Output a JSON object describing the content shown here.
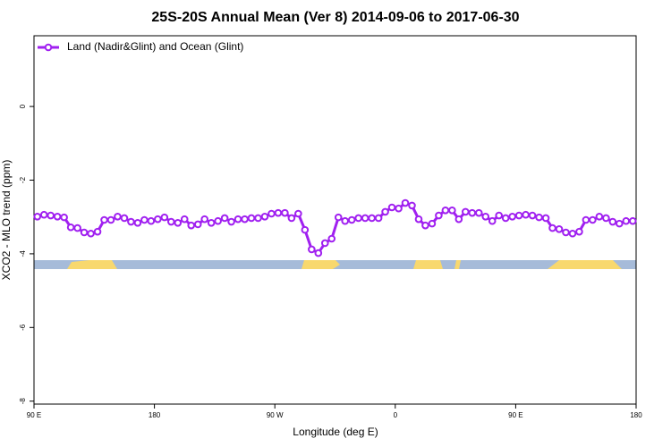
{
  "chart_data": {
    "type": "line",
    "title": "25S-20S Annual Mean (Ver 8)   2014-09-06 to 2017-06-30",
    "x_label": "Longitude (deg E)",
    "y_label": "XCO2 - MLO trend (ppm)",
    "xlim": [
      90,
      540
    ],
    "ylim": [
      -8.08,
      1.92
    ],
    "xticks": [
      {
        "value": 90,
        "label": "90 E"
      },
      180,
      {
        "value": 270,
        "label": "90 W"
      },
      {
        "value": 360,
        "label": "0"
      },
      {
        "value": 450,
        "label": "90 E"
      },
      {
        "value": 540,
        "label": "180"
      }
    ],
    "yticks": [
      0,
      -2,
      -4,
      -6,
      -8
    ],
    "legend": "top-left",
    "x": [
      92.5,
      97.5,
      102.5,
      107.5,
      112.5,
      117.5,
      122.5,
      127.5,
      132.5,
      137.5,
      142.5,
      147.5,
      152.5,
      157.5,
      162.5,
      167.5,
      172.5,
      177.5,
      182.5,
      187.5,
      192.5,
      197.5,
      202.5,
      207.5,
      212.5,
      217.5,
      222.5,
      227.5,
      232.5,
      237.5,
      242.5,
      247.5,
      252.5,
      257.5,
      262.5,
      267.5,
      272.5,
      277.5,
      282.5,
      287.5,
      292.5,
      297.5,
      302.5,
      307.5,
      312.5,
      317.5,
      322.5,
      327.5,
      332.5,
      337.5,
      342.5,
      347.5,
      352.5,
      357.5,
      362.5,
      367.5,
      372.5,
      377.5,
      382.5,
      387.5,
      392.5,
      397.5,
      402.5,
      407.5,
      412.5,
      417.5,
      422.5,
      427.5,
      432.5,
      437.5,
      442.5,
      447.5,
      452.5,
      457.5,
      462.5,
      467.5,
      472.5,
      477.5,
      482.5,
      487.5,
      492.5,
      497.5,
      502.5,
      507.5,
      512.5,
      517.5,
      522.5,
      527.5,
      532.5,
      537.5
    ],
    "series": [
      {
        "name": "Land (Nadir&Glint) and Ocean (Glint)",
        "color": "#a020f0",
        "values": [
          -2.99,
          -2.94,
          -2.96,
          -2.99,
          -3.01,
          -3.28,
          -3.3,
          -3.42,
          -3.45,
          -3.4,
          -3.08,
          -3.08,
          -2.99,
          -3.03,
          -3.13,
          -3.16,
          -3.08,
          -3.11,
          -3.06,
          -3.01,
          -3.13,
          -3.16,
          -3.06,
          -3.23,
          -3.2,
          -3.06,
          -3.16,
          -3.11,
          -3.03,
          -3.13,
          -3.06,
          -3.06,
          -3.03,
          -3.03,
          -2.99,
          -2.91,
          -2.89,
          -2.89,
          -3.03,
          -2.91,
          -3.35,
          -3.88,
          -3.98,
          -3.71,
          -3.59,
          -3.01,
          -3.11,
          -3.08,
          -3.03,
          -3.03,
          -3.03,
          -3.03,
          -2.86,
          -2.74,
          -2.77,
          -2.62,
          -2.69,
          -3.06,
          -3.23,
          -3.18,
          -2.96,
          -2.82,
          -2.82,
          -3.06,
          -2.86,
          -2.89,
          -2.89,
          -2.99,
          -3.11,
          -2.96,
          -3.03,
          -2.99,
          -2.96,
          -2.94,
          -2.96,
          -3.01,
          -3.03,
          -3.3,
          -3.33,
          -3.42,
          -3.45,
          -3.4,
          -3.08,
          -3.08,
          -2.99,
          -3.03,
          -3.13,
          -3.18,
          -3.11,
          -3.11
        ]
      }
    ]
  }
}
